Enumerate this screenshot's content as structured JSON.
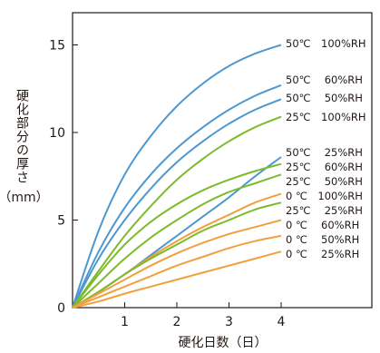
{
  "chart_data": {
    "type": "line",
    "xlabel": "硬化日数（日）",
    "ylabel": "硬化部分の厚さ",
    "yunit": "（mm）",
    "xlim": [
      0,
      5.3
    ],
    "ylim": [
      0,
      17
    ],
    "xticks": [
      "1",
      "2",
      "3",
      "4"
    ],
    "yticks": [
      "0",
      "5",
      "10",
      "15"
    ],
    "x": [
      0,
      0.5,
      1,
      1.5,
      2,
      2.5,
      3,
      3.5,
      4
    ],
    "series": [
      {
        "name": "50℃　100%RH",
        "color": "#4d98d0",
        "values": [
          0,
          4.4,
          7.6,
          9.8,
          11.5,
          12.8,
          13.8,
          14.5,
          15.0
        ]
      },
      {
        "name": "50℃　 60%RH",
        "color": "#4d98d0",
        "values": [
          0,
          3.2,
          5.7,
          7.6,
          9.1,
          10.3,
          11.3,
          12.1,
          12.7
        ]
      },
      {
        "name": "50℃　 50%RH",
        "color": "#4d98d0",
        "values": [
          0,
          2.8,
          5.0,
          6.8,
          8.3,
          9.5,
          10.5,
          11.3,
          11.9
        ]
      },
      {
        "name": "25℃　100%RH",
        "color": "#7cbb2b",
        "values": [
          0,
          2.1,
          4.1,
          5.8,
          7.3,
          8.5,
          9.5,
          10.3,
          10.9
        ]
      },
      {
        "name": "50℃　 25%RH",
        "color": "#4d98d0",
        "values": [
          0,
          0.9,
          1.9,
          3.0,
          4.1,
          5.2,
          6.3,
          7.5,
          8.6
        ]
      },
      {
        "name": "25℃　 60%RH",
        "color": "#7cbb2b",
        "values": [
          0,
          1.9,
          3.6,
          4.9,
          5.9,
          6.7,
          7.3,
          7.8,
          8.2
        ]
      },
      {
        "name": "25℃　 50%RH",
        "color": "#7cbb2b",
        "values": [
          0,
          1.4,
          2.8,
          4.0,
          5.0,
          5.9,
          6.6,
          7.1,
          7.6
        ]
      },
      {
        "name": "0 ℃　100%RH",
        "color": "#f0a03c",
        "values": [
          0,
          0.9,
          1.9,
          2.9,
          3.8,
          4.6,
          5.3,
          6.0,
          6.5
        ]
      },
      {
        "name": "25℃　 25%RH",
        "color": "#7cbb2b",
        "values": [
          0,
          0.9,
          1.9,
          2.8,
          3.6,
          4.4,
          5.0,
          5.6,
          6.0
        ]
      },
      {
        "name": "0 ℃　 60%RH",
        "color": "#f0a03c",
        "values": [
          0,
          0.8,
          1.6,
          2.4,
          3.1,
          3.7,
          4.2,
          4.6,
          5.0
        ]
      },
      {
        "name": "0 ℃　 50%RH",
        "color": "#f0a03c",
        "values": [
          0,
          0.6,
          1.2,
          1.8,
          2.4,
          2.9,
          3.4,
          3.8,
          4.1
        ]
      },
      {
        "name": "0 ℃　 25%RH",
        "color": "#f0a03c",
        "values": [
          0,
          0.35,
          0.8,
          1.2,
          1.6,
          2.0,
          2.4,
          2.8,
          3.2
        ]
      }
    ],
    "grid": false,
    "legend": "line-end labels"
  }
}
